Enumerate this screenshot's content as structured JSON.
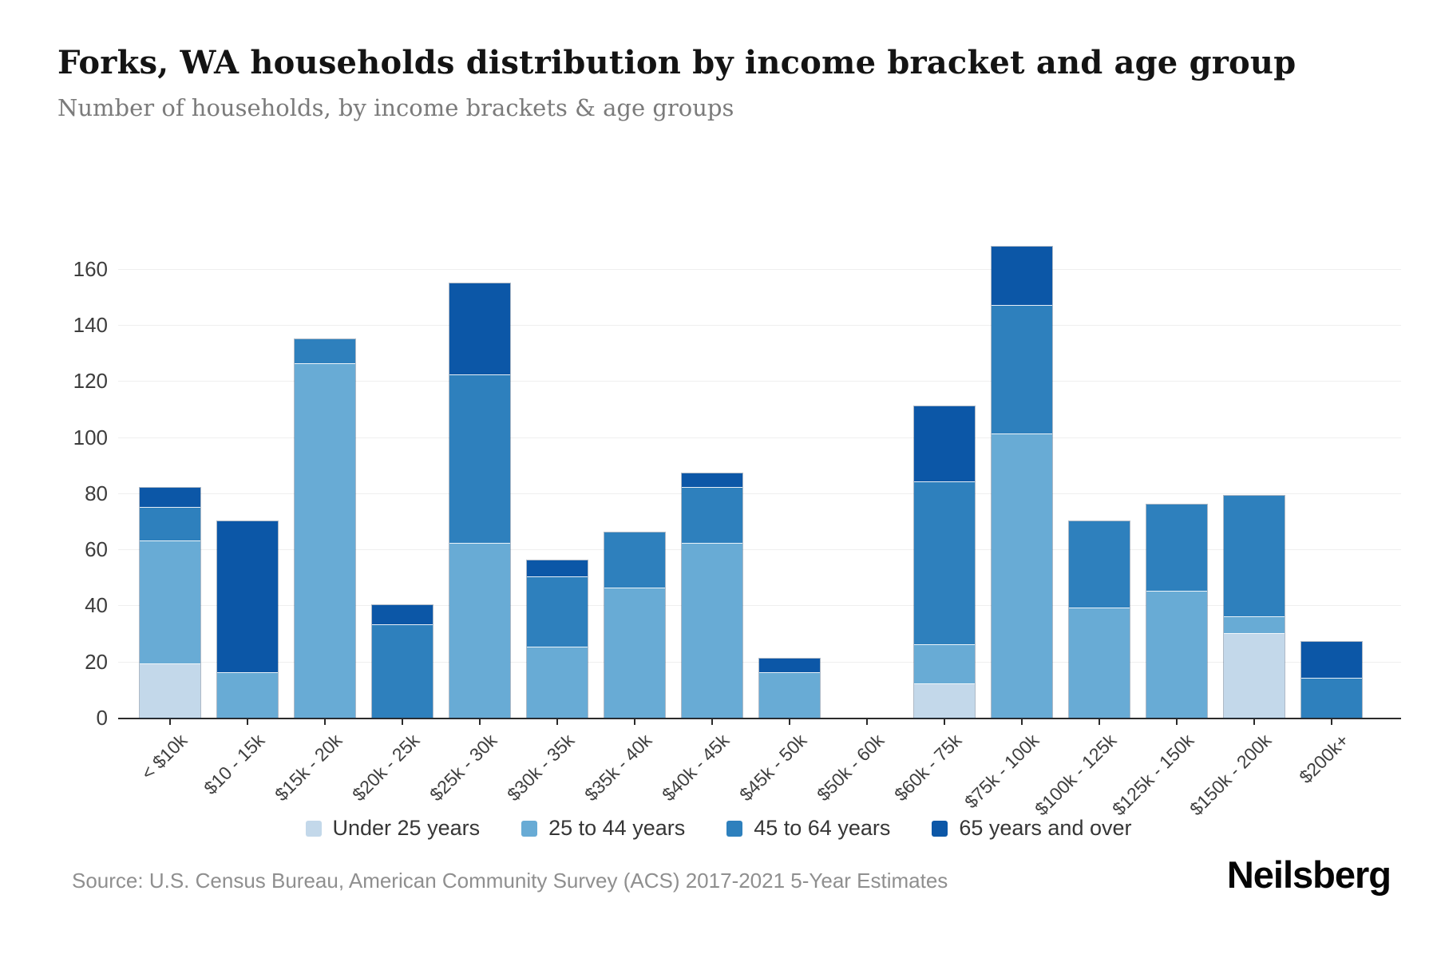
{
  "header": {
    "title": "Forks, WA households distribution by income bracket and age group",
    "subtitle": "Number of households, by income brackets & age groups"
  },
  "chart_data": {
    "type": "bar",
    "stacked": true,
    "title": "Forks, WA households distribution by income bracket and age group",
    "subtitle": "Number of households, by income brackets & age groups",
    "xlabel": "",
    "ylabel": "",
    "ylim": [
      0,
      170
    ],
    "yticks": [
      0,
      20,
      40,
      60,
      80,
      100,
      120,
      140,
      160
    ],
    "grid": "horizontal",
    "legend_position": "bottom",
    "categories": [
      "< $10k",
      "$10 - 15k",
      "$15k - 20k",
      "$20k - 25k",
      "$25k - 30k",
      "$30k - 35k",
      "$35k - 40k",
      "$40k - 45k",
      "$45k - 50k",
      "$50k - 60k",
      "$60k - 75k",
      "$75k - 100k",
      "$100k - 125k",
      "$125k - 150k",
      "$150k - 200k",
      "$200k+"
    ],
    "series": [
      {
        "name": "Under 25 years",
        "color": "#c3d8ea",
        "values": [
          19,
          0,
          0,
          0,
          0,
          0,
          0,
          0,
          0,
          0,
          12,
          0,
          0,
          0,
          30,
          0
        ]
      },
      {
        "name": "25 to 44 years",
        "color": "#68abd5",
        "values": [
          44,
          16,
          126,
          0,
          62,
          25,
          46,
          62,
          16,
          0,
          14,
          101,
          39,
          45,
          6,
          0
        ]
      },
      {
        "name": "45 to 64 years",
        "color": "#2e80bd",
        "values": [
          12,
          0,
          9,
          33,
          60,
          25,
          20,
          20,
          0,
          0,
          58,
          46,
          31,
          31,
          43,
          14
        ]
      },
      {
        "name": "65 years and over",
        "color": "#0c57a7",
        "values": [
          7,
          54,
          0,
          7,
          33,
          6,
          0,
          5,
          5,
          0,
          27,
          21,
          0,
          0,
          0,
          13
        ]
      }
    ],
    "totals": [
      82,
      70,
      135,
      40,
      155,
      56,
      66,
      87,
      21,
      0,
      111,
      168,
      70,
      76,
      79,
      27
    ]
  },
  "footer": {
    "source": "Source: U.S. Census Bureau, American Community Survey (ACS) 2017-2021 5-Year Estimates",
    "brand": "Neilsberg"
  }
}
